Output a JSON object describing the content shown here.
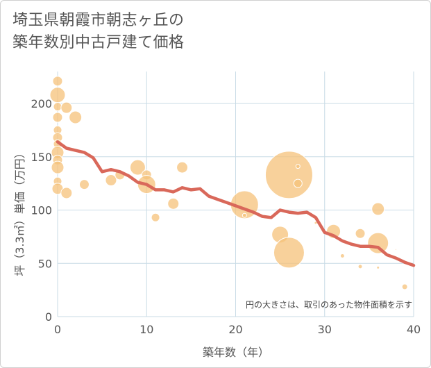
{
  "title_lines": [
    "埼玉県朝霞市朝志ヶ丘の",
    "築年数別中古戸建て価格"
  ],
  "chart_data": {
    "type": "scatter",
    "title": "埼玉県朝霞市朝志ヶ丘の築年数別中古戸建て価格",
    "xlabel": "築年数（年）",
    "ylabel": "坪（3.3㎡）単価（万円）",
    "xlim": [
      0,
      40
    ],
    "ylim": [
      0,
      230
    ],
    "xticks": [
      0,
      10,
      20,
      30,
      40
    ],
    "yticks": [
      0,
      50,
      100,
      150,
      200
    ],
    "grid": true,
    "note": "円の大きさは、取引のあった物件面積を示す",
    "colors": {
      "bubble": "#f5c27a",
      "line": "#d9685a",
      "grid": "#c9dbe6"
    },
    "bubbles": [
      {
        "x": 0,
        "y": 221,
        "s": 7
      },
      {
        "x": 0,
        "y": 208,
        "s": 11
      },
      {
        "x": 0,
        "y": 197,
        "s": 6
      },
      {
        "x": 0,
        "y": 187,
        "s": 7
      },
      {
        "x": 0,
        "y": 175,
        "s": 6
      },
      {
        "x": 0,
        "y": 168,
        "s": 7
      },
      {
        "x": 0,
        "y": 162,
        "s": 6
      },
      {
        "x": 0,
        "y": 154,
        "s": 9
      },
      {
        "x": 0,
        "y": 147,
        "s": 7
      },
      {
        "x": 0,
        "y": 140,
        "s": 9
      },
      {
        "x": 0,
        "y": 127,
        "s": 6
      },
      {
        "x": 0,
        "y": 120,
        "s": 8
      },
      {
        "x": 1,
        "y": 196,
        "s": 8
      },
      {
        "x": 1,
        "y": 116,
        "s": 8
      },
      {
        "x": 2,
        "y": 187,
        "s": 9
      },
      {
        "x": 3,
        "y": 124,
        "s": 7
      },
      {
        "x": 6,
        "y": 128,
        "s": 8
      },
      {
        "x": 7,
        "y": 133,
        "s": 7
      },
      {
        "x": 9,
        "y": 140,
        "s": 11
      },
      {
        "x": 10,
        "y": 133,
        "s": 7
      },
      {
        "x": 10,
        "y": 124,
        "s": 13
      },
      {
        "x": 11,
        "y": 93,
        "s": 6
      },
      {
        "x": 13,
        "y": 106,
        "s": 8
      },
      {
        "x": 14,
        "y": 140,
        "s": 8
      },
      {
        "x": 21,
        "y": 105,
        "s": 20
      },
      {
        "x": 21,
        "y": 95,
        "s": 3
      },
      {
        "x": 25,
        "y": 77,
        "s": 12
      },
      {
        "x": 26,
        "y": 133,
        "s": 34
      },
      {
        "x": 26,
        "y": 60,
        "s": 22
      },
      {
        "x": 27,
        "y": 141,
        "s": 3
      },
      {
        "x": 27,
        "y": 125,
        "s": 6
      },
      {
        "x": 29,
        "y": 88,
        "s": 2
      },
      {
        "x": 31,
        "y": 80,
        "s": 10
      },
      {
        "x": 32,
        "y": 57,
        "s": 3
      },
      {
        "x": 34,
        "y": 78,
        "s": 7
      },
      {
        "x": 34,
        "y": 47,
        "s": 3
      },
      {
        "x": 36,
        "y": 101,
        "s": 9
      },
      {
        "x": 36,
        "y": 69,
        "s": 15
      },
      {
        "x": 36,
        "y": 46,
        "s": 2
      },
      {
        "x": 38,
        "y": 63,
        "s": 1
      },
      {
        "x": 39,
        "y": 28,
        "s": 4
      }
    ],
    "trend": {
      "x": [
        0,
        1,
        2,
        3,
        4,
        5,
        6,
        7,
        8,
        9,
        10,
        11,
        12,
        13,
        14,
        15,
        16,
        17,
        18,
        19,
        20,
        21,
        22,
        23,
        24,
        25,
        26,
        27,
        28,
        29,
        30,
        31,
        32,
        33,
        34,
        35,
        36,
        37,
        38,
        39,
        40
      ],
      "y": [
        164,
        158,
        156,
        154,
        149,
        136,
        138,
        136,
        132,
        126,
        124,
        119,
        119,
        117,
        121,
        119,
        120,
        113,
        110,
        107,
        104,
        101,
        98,
        94,
        93,
        100,
        98,
        97,
        98,
        93,
        79,
        76,
        71,
        68,
        66,
        66,
        65,
        58,
        55,
        51,
        48
      ]
    }
  }
}
